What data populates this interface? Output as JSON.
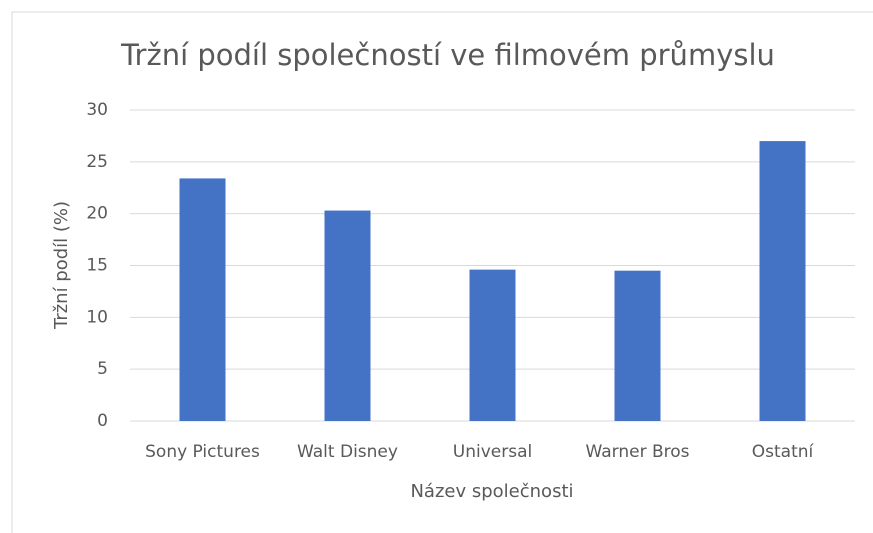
{
  "chart_data": {
    "type": "bar",
    "title": "Tržní podíl společností ve filmovém průmyslu",
    "x_label": "Název společnosti",
    "y_label": "Tržní podíl (%)",
    "categories": [
      "Sony Pictures",
      "Walt Disney",
      "Universal",
      "Warner Bros",
      "Ostatní"
    ],
    "values": [
      23.4,
      20.3,
      14.6,
      14.5,
      27.0
    ],
    "color": "#4472c4",
    "ylim": [
      0,
      30
    ],
    "yticks": [
      0,
      5,
      10,
      15,
      20,
      25,
      30
    ],
    "grid": true
  }
}
